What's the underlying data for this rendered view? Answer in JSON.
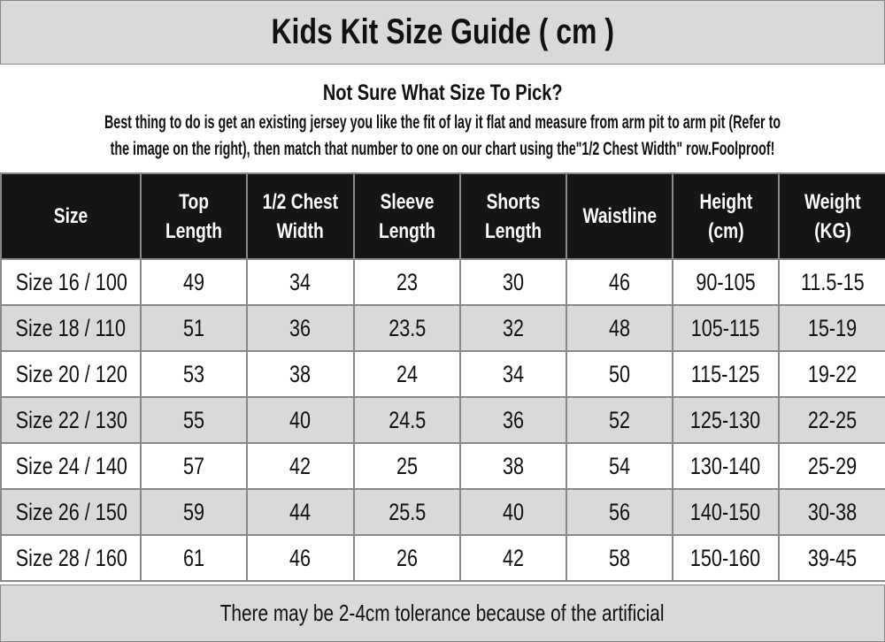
{
  "title": "Kids Kit Size Guide ( cm )",
  "intro": {
    "heading": "Not Sure What Size To Pick?",
    "line1": "Best thing to do is get an existing jersey you like the fit of lay it flat and measure from arm pit to arm pit (Refer to",
    "line2": "the image on the right), then match that number to one on our chart using the\"1/2 Chest Width\" row.Foolproof!"
  },
  "table": {
    "headers": [
      [
        "Size"
      ],
      [
        "Top",
        "Length"
      ],
      [
        "1/2 Chest",
        "Width"
      ],
      [
        "Sleeve",
        "Length"
      ],
      [
        "Shorts",
        "Length"
      ],
      [
        "Waistline"
      ],
      [
        "Height",
        "(cm)"
      ],
      [
        "Weight",
        "(KG)"
      ]
    ],
    "rows": [
      [
        "Size 16 / 100",
        "49",
        "34",
        "23",
        "30",
        "46",
        "90-105",
        "11.5-15"
      ],
      [
        "Size 18 / 110",
        "51",
        "36",
        "23.5",
        "32",
        "48",
        "105-115",
        "15-19"
      ],
      [
        "Size 20 / 120",
        "53",
        "38",
        "24",
        "34",
        "50",
        "115-125",
        "19-22"
      ],
      [
        "Size 22 / 130",
        "55",
        "40",
        "24.5",
        "36",
        "52",
        "125-130",
        "22-25"
      ],
      [
        "Size 24 / 140",
        "57",
        "42",
        "25",
        "38",
        "54",
        "130-140",
        "25-29"
      ],
      [
        "Size 26 / 150",
        "59",
        "44",
        "25.5",
        "40",
        "56",
        "140-150",
        "30-38"
      ],
      [
        "Size 28 / 160",
        "61",
        "46",
        "26",
        "42",
        "58",
        "150-160",
        "39-45"
      ]
    ]
  },
  "footer": "There may be 2-4cm tolerance because of the artificial"
}
